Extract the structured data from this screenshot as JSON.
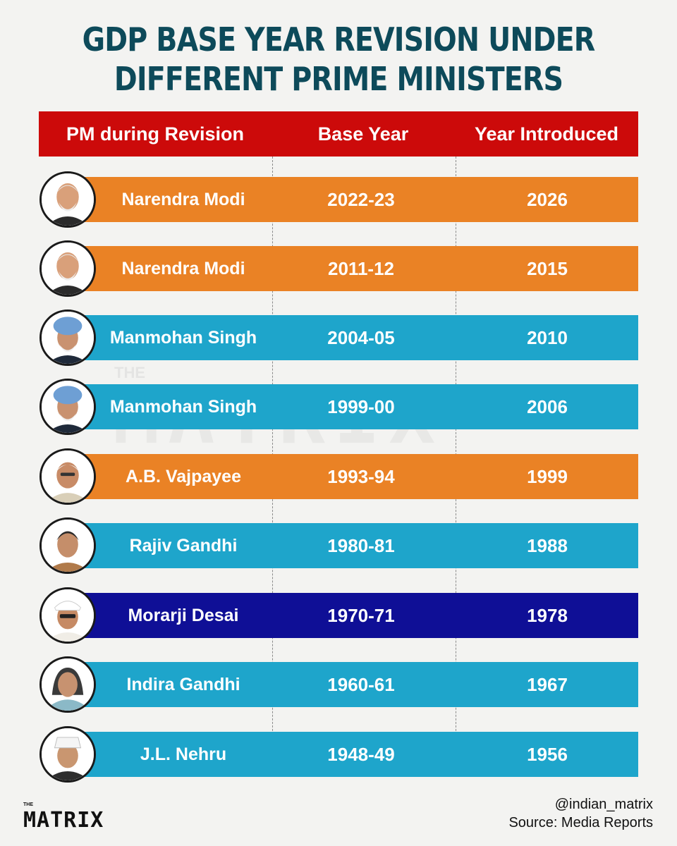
{
  "title": {
    "line1": "GDP BASE YEAR REVISION UNDER",
    "line2": "DIFFERENT PRIME MINISTERS"
  },
  "table": {
    "headers": [
      "PM during Revision",
      "Base Year",
      "Year Introduced"
    ],
    "rows": [
      {
        "pm": "Narendra Modi",
        "base_year": "2022-23",
        "year_introduced": "2026",
        "color": "#ea8225"
      },
      {
        "pm": "Narendra Modi",
        "base_year": "2011-12",
        "year_introduced": "2015",
        "color": "#ea8225"
      },
      {
        "pm": "Manmohan Singh",
        "base_year": "2004-05",
        "year_introduced": "2010",
        "color": "#1ea5cb"
      },
      {
        "pm": "Manmohan Singh",
        "base_year": "1999-00",
        "year_introduced": "2006",
        "color": "#1ea5cb"
      },
      {
        "pm": "A.B. Vajpayee",
        "base_year": "1993-94",
        "year_introduced": "1999",
        "color": "#ea8225"
      },
      {
        "pm": "Rajiv Gandhi",
        "base_year": "1980-81",
        "year_introduced": "1988",
        "color": "#1ea5cb"
      },
      {
        "pm": "Morarji Desai",
        "base_year": "1970-71",
        "year_introduced": "1978",
        "color": "#0f0f96"
      },
      {
        "pm": "Indira Gandhi",
        "base_year": "1960-61",
        "year_introduced": "1967",
        "color": "#1ea5cb"
      },
      {
        "pm": "J.L. Nehru",
        "base_year": "1948-49",
        "year_introduced": "1956",
        "color": "#1ea5cb"
      }
    ]
  },
  "watermark": {
    "small": "THE",
    "large": "MATRIX"
  },
  "logo": {
    "small": "THE",
    "large": "MATRIX"
  },
  "footer": {
    "handle": "@indian_matrix",
    "source": "Source: Media Reports"
  },
  "colors": {
    "title": "#0d4a5a",
    "header": "#cc0a0a",
    "orange": "#ea8225",
    "teal": "#1ea5cb",
    "navy": "#0f0f96"
  }
}
